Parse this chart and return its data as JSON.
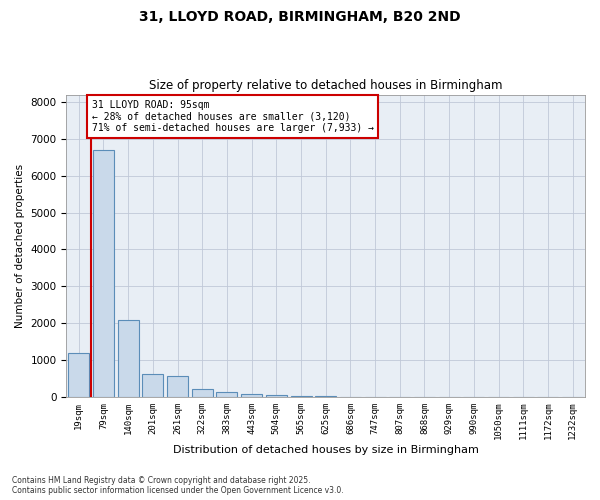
{
  "title_line1": "31, LLOYD ROAD, BIRMINGHAM, B20 2ND",
  "title_line2": "Size of property relative to detached houses in Birmingham",
  "xlabel": "Distribution of detached houses by size in Birmingham",
  "ylabel": "Number of detached properties",
  "annotation_title": "31 LLOYD ROAD: 95sqm",
  "annotation_line2": "← 28% of detached houses are smaller (3,120)",
  "annotation_line3": "71% of semi-detached houses are larger (7,933) →",
  "categories": [
    "19sqm",
    "79sqm",
    "140sqm",
    "201sqm",
    "261sqm",
    "322sqm",
    "383sqm",
    "443sqm",
    "504sqm",
    "565sqm",
    "625sqm",
    "686sqm",
    "747sqm",
    "807sqm",
    "868sqm",
    "929sqm",
    "990sqm",
    "1050sqm",
    "1111sqm",
    "1172sqm",
    "1232sqm"
  ],
  "values": [
    1200,
    6700,
    2100,
    620,
    580,
    220,
    130,
    90,
    50,
    30,
    20,
    10,
    8,
    5,
    4,
    3,
    2,
    2,
    1,
    1,
    1
  ],
  "bar_color": "#c9d9ea",
  "bar_edge_color": "#5b8db8",
  "vline_color": "#cc0000",
  "vline_x": 0.5,
  "annotation_box_edge_color": "#cc0000",
  "annotation_box_face_color": "#ffffff",
  "background_color": "#ffffff",
  "plot_bg_color": "#e8eef5",
  "grid_color": "#c0c8d8",
  "ylim": [
    0,
    8200
  ],
  "yticks": [
    0,
    1000,
    2000,
    3000,
    4000,
    5000,
    6000,
    7000,
    8000
  ],
  "title1_fontsize": 10,
  "title2_fontsize": 9,
  "footer_line1": "Contains HM Land Registry data © Crown copyright and database right 2025.",
  "footer_line2": "Contains public sector information licensed under the Open Government Licence v3.0."
}
